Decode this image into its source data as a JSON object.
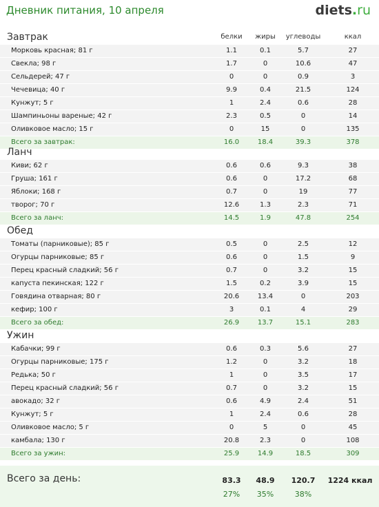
{
  "header": {
    "title": "Дневник питания, 10 апреля",
    "logo_main": "diets",
    "logo_dot": ".",
    "logo_tld": "ru"
  },
  "columns": [
    "белки",
    "жиры",
    "углеводы",
    "ккал"
  ],
  "sections": [
    {
      "name": "Завтрак",
      "items": [
        {
          "name": "Морковь красная; 81 г",
          "p": "1.1",
          "f": "0.1",
          "c": "5.7",
          "k": "27"
        },
        {
          "name": "Свекла; 98 г",
          "p": "1.7",
          "f": "0",
          "c": "10.6",
          "k": "47"
        },
        {
          "name": "Сельдерей; 47 г",
          "p": "0",
          "f": "0",
          "c": "0.9",
          "k": "3"
        },
        {
          "name": "Чечевица; 40 г",
          "p": "9.9",
          "f": "0.4",
          "c": "21.5",
          "k": "124"
        },
        {
          "name": "Кунжут; 5 г",
          "p": "1",
          "f": "2.4",
          "c": "0.6",
          "k": "28"
        },
        {
          "name": "Шампиньоны вареные; 42 г",
          "p": "2.3",
          "f": "0.5",
          "c": "0",
          "k": "14"
        },
        {
          "name": "Оливковое масло; 15 г",
          "p": "0",
          "f": "15",
          "c": "0",
          "k": "135"
        }
      ],
      "total": {
        "name": "Всего за завтрак:",
        "p": "16.0",
        "f": "18.4",
        "c": "39.3",
        "k": "378"
      }
    },
    {
      "name": "Ланч",
      "items": [
        {
          "name": "Киви; 62 г",
          "p": "0.6",
          "f": "0.6",
          "c": "9.3",
          "k": "38"
        },
        {
          "name": "Груша; 161 г",
          "p": "0.6",
          "f": "0",
          "c": "17.2",
          "k": "68"
        },
        {
          "name": "Яблоки; 168 г",
          "p": "0.7",
          "f": "0",
          "c": "19",
          "k": "77"
        },
        {
          "name": "творог; 70 г",
          "p": "12.6",
          "f": "1.3",
          "c": "2.3",
          "k": "71"
        }
      ],
      "total": {
        "name": "Всего за ланч:",
        "p": "14.5",
        "f": "1.9",
        "c": "47.8",
        "k": "254"
      }
    },
    {
      "name": "Обед",
      "items": [
        {
          "name": "Томаты (парниковые); 85 г",
          "p": "0.5",
          "f": "0",
          "c": "2.5",
          "k": "12"
        },
        {
          "name": "Огурцы парниковые; 85 г",
          "p": "0.6",
          "f": "0",
          "c": "1.5",
          "k": "9"
        },
        {
          "name": "Перец красный сладкий; 56 г",
          "p": "0.7",
          "f": "0",
          "c": "3.2",
          "k": "15"
        },
        {
          "name": "капуста пекинская; 122 г",
          "p": "1.5",
          "f": "0.2",
          "c": "3.9",
          "k": "15"
        },
        {
          "name": "Говядина отварная; 80 г",
          "p": "20.6",
          "f": "13.4",
          "c": "0",
          "k": "203"
        },
        {
          "name": "кефир; 100 г",
          "p": "3",
          "f": "0.1",
          "c": "4",
          "k": "29"
        }
      ],
      "total": {
        "name": "Всего за обед:",
        "p": "26.9",
        "f": "13.7",
        "c": "15.1",
        "k": "283"
      }
    },
    {
      "name": "Ужин",
      "items": [
        {
          "name": "Кабачки; 99 г",
          "p": "0.6",
          "f": "0.3",
          "c": "5.6",
          "k": "27"
        },
        {
          "name": "Огурцы парниковые; 175 г",
          "p": "1.2",
          "f": "0",
          "c": "3.2",
          "k": "18"
        },
        {
          "name": "Редька; 50 г",
          "p": "1",
          "f": "0",
          "c": "3.5",
          "k": "17"
        },
        {
          "name": "Перец красный сладкий; 56 г",
          "p": "0.7",
          "f": "0",
          "c": "3.2",
          "k": "15"
        },
        {
          "name": "авокадо; 32 г",
          "p": "0.6",
          "f": "4.9",
          "c": "2.4",
          "k": "51"
        },
        {
          "name": "Кунжут; 5 г",
          "p": "1",
          "f": "2.4",
          "c": "0.6",
          "k": "28"
        },
        {
          "name": "Оливковое масло; 5 г",
          "p": "0",
          "f": "5",
          "c": "0",
          "k": "45"
        },
        {
          "name": "камбала; 130 г",
          "p": "20.8",
          "f": "2.3",
          "c": "0",
          "k": "108"
        }
      ],
      "total": {
        "name": "Всего за ужин:",
        "p": "25.9",
        "f": "14.9",
        "c": "18.5",
        "k": "309"
      }
    }
  ],
  "day_total": {
    "label": "Всего за день:",
    "p": "83.3",
    "f": "48.9",
    "c": "120.7",
    "k": "1224 ккал",
    "p_pct": "27%",
    "f_pct": "35%",
    "c_pct": "38%"
  },
  "colors": {
    "title_green": "#2d8a2d",
    "total_bg": "#ebf5e8",
    "row_bg": "#f3f3f3"
  }
}
